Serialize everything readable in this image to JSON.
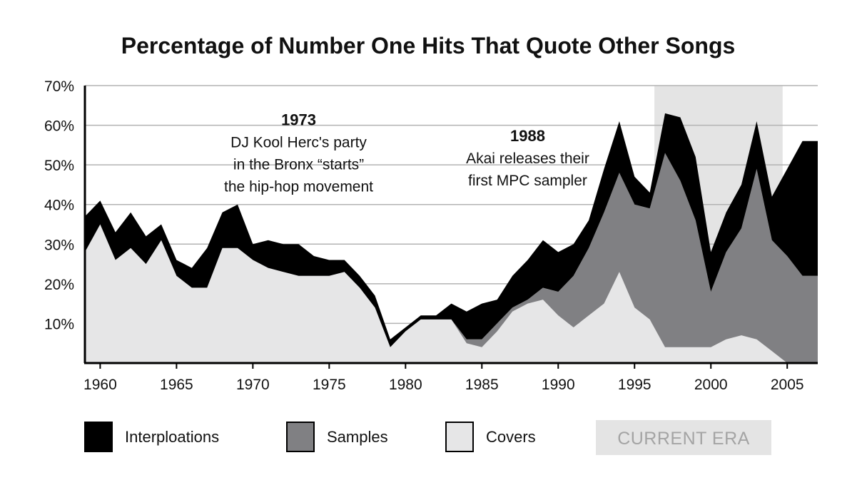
{
  "chart_data": {
    "type": "area",
    "stacked": true,
    "title": "Percentage of Number One Hits That Quote Other Songs",
    "xlabel": "",
    "ylabel": "",
    "xlim": [
      1959,
      2007
    ],
    "ylim": [
      0,
      70
    ],
    "grid": true,
    "x_ticks": [
      1960,
      1965,
      1970,
      1975,
      1980,
      1985,
      1990,
      1995,
      2000,
      2005
    ],
    "x_tick_labels": [
      "1960",
      "1965",
      "1970",
      "1975",
      "1980",
      "1985",
      "1990",
      "1995",
      "2000",
      "2005"
    ],
    "y_ticks": [
      10,
      20,
      30,
      40,
      50,
      60,
      70
    ],
    "y_tick_labels": [
      "10%",
      "20%",
      "30%",
      "40%",
      "50%",
      "60%",
      "70%"
    ],
    "x": [
      1959,
      1960,
      1961,
      1962,
      1963,
      1964,
      1965,
      1966,
      1967,
      1968,
      1969,
      1970,
      1971,
      1972,
      1973,
      1974,
      1975,
      1976,
      1977,
      1978,
      1979,
      1980,
      1981,
      1982,
      1983,
      1984,
      1985,
      1986,
      1987,
      1988,
      1989,
      1990,
      1991,
      1992,
      1993,
      1994,
      1995,
      1996,
      1997,
      1998,
      1999,
      2000,
      2001,
      2002,
      2003,
      2004,
      2005,
      2006,
      2007
    ],
    "series": [
      {
        "name": "Covers",
        "values": [
          28,
          35,
          26,
          29,
          25,
          31,
          22,
          19,
          19,
          29,
          29,
          26,
          24,
          23,
          22,
          22,
          22,
          23,
          19,
          14,
          4,
          8,
          11,
          11,
          11,
          5,
          4,
          8,
          13,
          15,
          16,
          12,
          9,
          12,
          15,
          23,
          14,
          11,
          4,
          4,
          4,
          4,
          6,
          7,
          6,
          3,
          0,
          0,
          0
        ]
      },
      {
        "name": "Samples",
        "values": [
          0,
          0,
          0,
          0,
          0,
          0,
          0,
          0,
          0,
          0,
          0,
          0,
          0,
          0,
          0,
          0,
          0,
          0,
          0,
          0,
          0,
          0,
          0,
          0,
          0,
          1,
          2,
          2,
          1,
          1,
          3,
          6,
          13,
          17,
          23,
          25,
          26,
          28,
          49,
          42,
          32,
          14,
          22,
          27,
          43,
          28,
          27,
          22,
          22
        ]
      },
      {
        "name": "Interploations",
        "values": [
          9,
          6,
          7,
          9,
          7,
          4,
          4,
          5,
          10,
          9,
          11,
          4,
          7,
          7,
          8,
          5,
          4,
          3,
          3,
          3,
          2,
          1,
          1,
          1,
          4,
          7,
          9,
          6,
          8,
          10,
          12,
          10,
          8,
          7,
          11,
          13,
          7,
          4,
          10,
          16,
          16,
          10,
          10,
          11,
          12,
          11,
          22,
          34,
          34
        ]
      }
    ],
    "colors": {
      "Interploations": "#000000",
      "Samples": "#808083",
      "Covers": "#e6e6e7"
    },
    "highlight": {
      "label": "CURRENT ERA",
      "x_range": [
        1996.3,
        2004.7
      ],
      "color": "#e4e4e4"
    },
    "annotations": [
      {
        "x": 1973,
        "y": 60,
        "lines": [
          "1973",
          "DJ Kool Herc's party",
          "in the Bronx “starts”",
          "the hip-hop movement"
        ]
      },
      {
        "x": 1988,
        "y": 56,
        "lines": [
          "1988",
          "Akai releases their",
          "first MPC sampler"
        ]
      }
    ],
    "legend_position": "bottom",
    "legend": [
      "Interploations",
      "Samples",
      "Covers",
      "CURRENT ERA"
    ]
  }
}
